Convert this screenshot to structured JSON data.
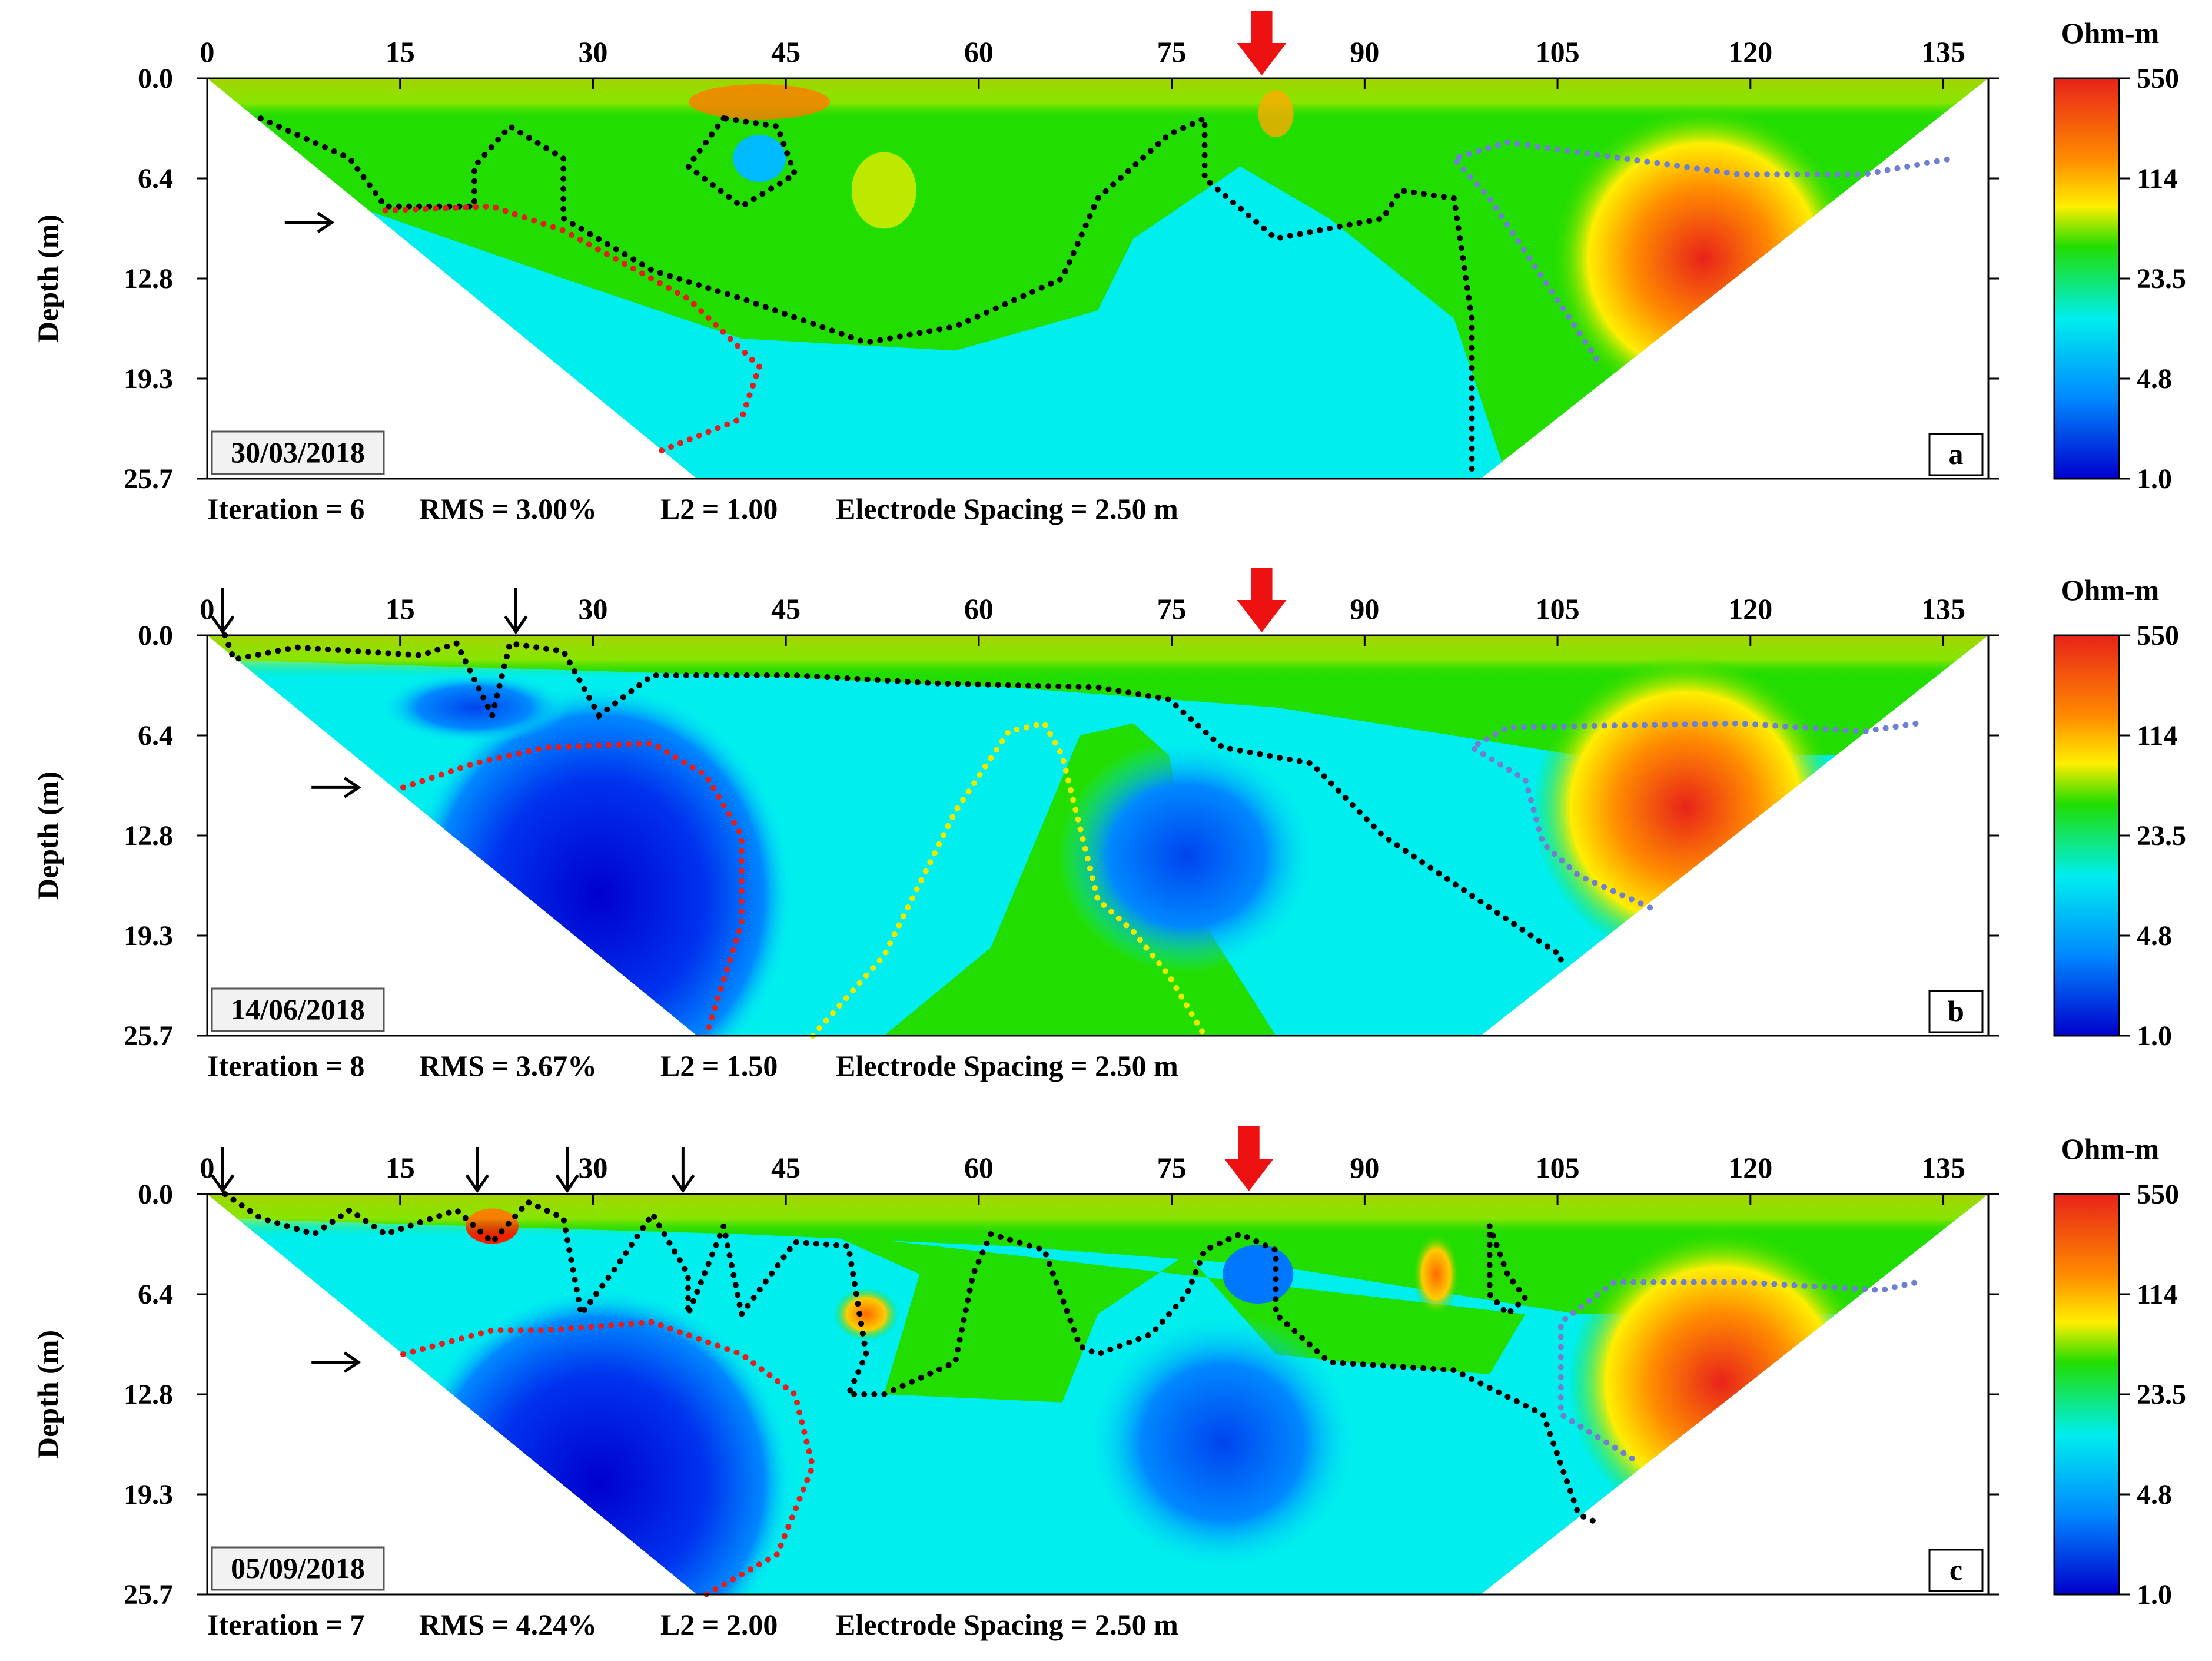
{
  "x_ticks": [
    "0",
    "15",
    "30",
    "45",
    "60",
    "75",
    "90",
    "105",
    "120",
    "135"
  ],
  "y_ticks": [
    "0.0",
    "6.4",
    "12.8",
    "19.3",
    "25.7"
  ],
  "y_label": "Depth (m)",
  "colorbar": {
    "title": "Ohm-m",
    "ticks": [
      "550",
      "114",
      "23.5",
      "4.8",
      "1.0"
    ],
    "colors": [
      "#e8231a",
      "#ffb000",
      "#ffff00",
      "#22dd00",
      "#00eeee",
      "#0088ff",
      "#0000cc"
    ]
  },
  "panels": [
    {
      "date": "30/03/2018",
      "letter": "a",
      "stats": {
        "iteration": "Iteration = 6",
        "rms": "RMS = 3.00%",
        "l2": "L2 = 1.00",
        "spacing": "Electrode Spacing = 2.50 m"
      },
      "red_arrow_x": [
        82
      ],
      "black_arrows_x": []
    },
    {
      "date": "14/06/2018",
      "letter": "b",
      "stats": {
        "iteration": "Iteration = 8",
        "rms": "RMS = 3.67%",
        "l2": "L2 = 1.50",
        "spacing": "Electrode Spacing = 2.50 m"
      },
      "red_arrow_x": [
        82
      ],
      "black_arrows_x": [
        1.2,
        24
      ]
    },
    {
      "date": "05/09/2018",
      "letter": "c",
      "stats": {
        "iteration": "Iteration = 7",
        "rms": "RMS = 4.24%",
        "l2": "L2 = 2.00",
        "spacing": "Electrode Spacing = 2.50 m"
      },
      "red_arrow_x": [
        81
      ],
      "black_arrows_x": [
        1.2,
        21,
        28,
        37
      ]
    }
  ]
}
